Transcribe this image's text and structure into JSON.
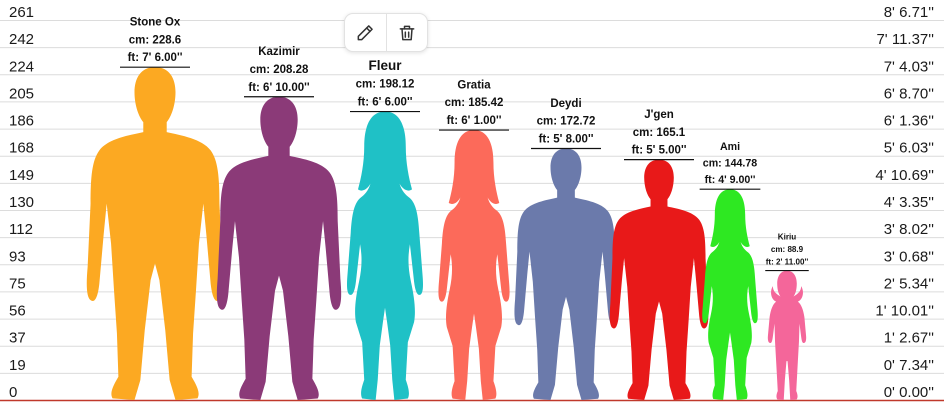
{
  "toolbar": {
    "edit_icon": "pencil-icon",
    "delete_icon": "trash-icon"
  },
  "chart_data": {
    "type": "bar",
    "title": "",
    "y_unit_left": "cm",
    "y_unit_right": "ft/in",
    "ylim": [
      0,
      261
    ],
    "grid": true,
    "ticks_left": [
      "261",
      "242",
      "224",
      "205",
      "186",
      "168",
      "149",
      "130",
      "112",
      "93",
      "75",
      "56",
      "37",
      "19",
      "0"
    ],
    "ticks_right": [
      "8' 6.71''",
      "7' 11.37''",
      "7' 4.03''",
      "6' 8.70''",
      "6' 1.36''",
      "5' 6.03''",
      "4' 10.69''",
      "4' 3.35''",
      "3' 8.02''",
      "3' 0.68''",
      "2' 5.34''",
      "1' 10.01''",
      "1' 2.67''",
      "0' 7.34''",
      "0' 0.00''"
    ],
    "categories": [
      "Stone Ox",
      "Kazimir",
      "Fleur",
      "Gratia",
      "Deydi",
      "J'gen",
      "Ami",
      "Kiriu"
    ],
    "values": [
      228.6,
      208.28,
      198.12,
      185.42,
      172.72,
      165.1,
      144.78,
      88.9
    ],
    "cm_labels": [
      "cm: 228.6",
      "cm: 208.28",
      "cm: 198.12",
      "cm: 185.42",
      "cm: 172.72",
      "cm: 165.1",
      "cm: 144.78",
      "cm: 88.9"
    ],
    "ft_labels": [
      "ft: 7' 6.00''",
      "ft: 6' 10.00''",
      "ft: 6' 6.00''",
      "ft: 6' 1.00''",
      "ft: 5' 8.00''",
      "ft: 5' 5.00''",
      "ft: 4' 9.00''",
      "ft: 2' 11.00''"
    ],
    "colors": [
      "#fca922",
      "#8b3a78",
      "#1fc1c6",
      "#fc6a5a",
      "#6b7aab",
      "#e81919",
      "#2ee822",
      "#f4669a"
    ],
    "figures": [
      "man",
      "man",
      "woman",
      "woman",
      "man",
      "man",
      "woman",
      "girl"
    ]
  }
}
